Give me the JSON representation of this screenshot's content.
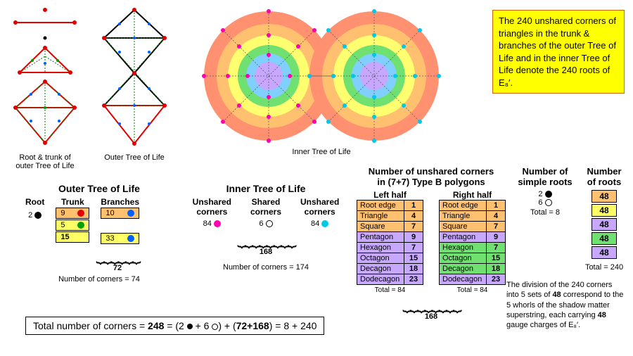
{
  "yellowbox": "The 240 unshared corners of triangles in the trunk & branches of the outer Tree of Life and in the inner Tree of Life denote the 240 roots of E₈′.",
  "top_labels": {
    "root_trunk": "Root & trunk of\nouter Tree of Life",
    "outer": "Outer Tree of Life",
    "inner": "Inner Tree of Life"
  },
  "outer": {
    "title": "Outer Tree of Life",
    "root_label": "Root",
    "trunk_label": "Trunk",
    "branches_label": "Branches",
    "root_val": "2",
    "trunk": [
      {
        "n": "9",
        "color": "#e00000",
        "bg": "bg-orange"
      },
      {
        "n": "5",
        "color": "#00a000",
        "bg": "bg-yellow"
      },
      {
        "n": "15",
        "bold": true,
        "bg": "bg-yellow"
      }
    ],
    "branches": [
      {
        "n": "10",
        "color": "#0060ff",
        "bg": "bg-orange"
      },
      {
        "n": "33",
        "color": "#0060ff",
        "bg": "bg-yellow"
      }
    ],
    "sum": "72",
    "corners": "Number of corners = 74"
  },
  "inner": {
    "title": "Inner Tree of Life",
    "cols": [
      "Unshared\ncorners",
      "Shared\ncorners",
      "Unshared\ncorners"
    ],
    "vals": [
      "84",
      "6",
      "84"
    ],
    "sum": "168",
    "corners": "Number of corners = 174"
  },
  "poly": {
    "title": "Number of unshared corners\nin (7+7) Type B polygons",
    "left_label": "Left half",
    "right_label": "Right half",
    "rows": [
      {
        "name": "Root edge",
        "n": "1",
        "bgL": "bg-orange",
        "bgR": "bg-orange"
      },
      {
        "name": "Triangle",
        "n": "4",
        "bgL": "bg-orange",
        "bgR": "bg-orange"
      },
      {
        "name": "Square",
        "n": "7",
        "bgL": "bg-orange",
        "bgR": "bg-orange"
      },
      {
        "name": "Pentagon",
        "n": "9",
        "bgL": "bg-purple",
        "bgR": "bg-purple"
      },
      {
        "name": "Hexagon",
        "n": "7",
        "bgL": "bg-purple",
        "bgR": "bg-green"
      },
      {
        "name": "Octagon",
        "n": "15",
        "bgL": "bg-purple",
        "bgR": "bg-green"
      },
      {
        "name": "Decagon",
        "n": "18",
        "bgL": "bg-purple",
        "bgR": "bg-green"
      },
      {
        "name": "Dodecagon",
        "n": "23",
        "bgL": "bg-purple",
        "bgR": "bg-purple"
      }
    ],
    "total_each": "Total = 84",
    "sum": "168"
  },
  "simple_roots": {
    "title": "Number of\nsimple roots",
    "black": "2",
    "hollow": "6",
    "total": "Total = 8"
  },
  "roots": {
    "title": "Number\nof roots",
    "items": [
      {
        "n": "48",
        "bg": "bg-orange"
      },
      {
        "n": "48",
        "bg": "bg-yellow"
      },
      {
        "n": "48",
        "bg": "bg-purple"
      },
      {
        "n": "48",
        "bg": "bg-green"
      },
      {
        "n": "48",
        "bg": "bg-purple"
      }
    ],
    "total": "Total = 240"
  },
  "bottom_para": "The division of the 240 corners into 5 sets of 48 correspond to the 5 whorls of the shadow matter superstring, each carrying 48 gauge charges of E₈′.",
  "formula_label": "Total number of corners = ",
  "formula_bold": "248",
  "formula_rest": " = (2 ● + 6 ○) + (72+168) = 8 + 240"
}
